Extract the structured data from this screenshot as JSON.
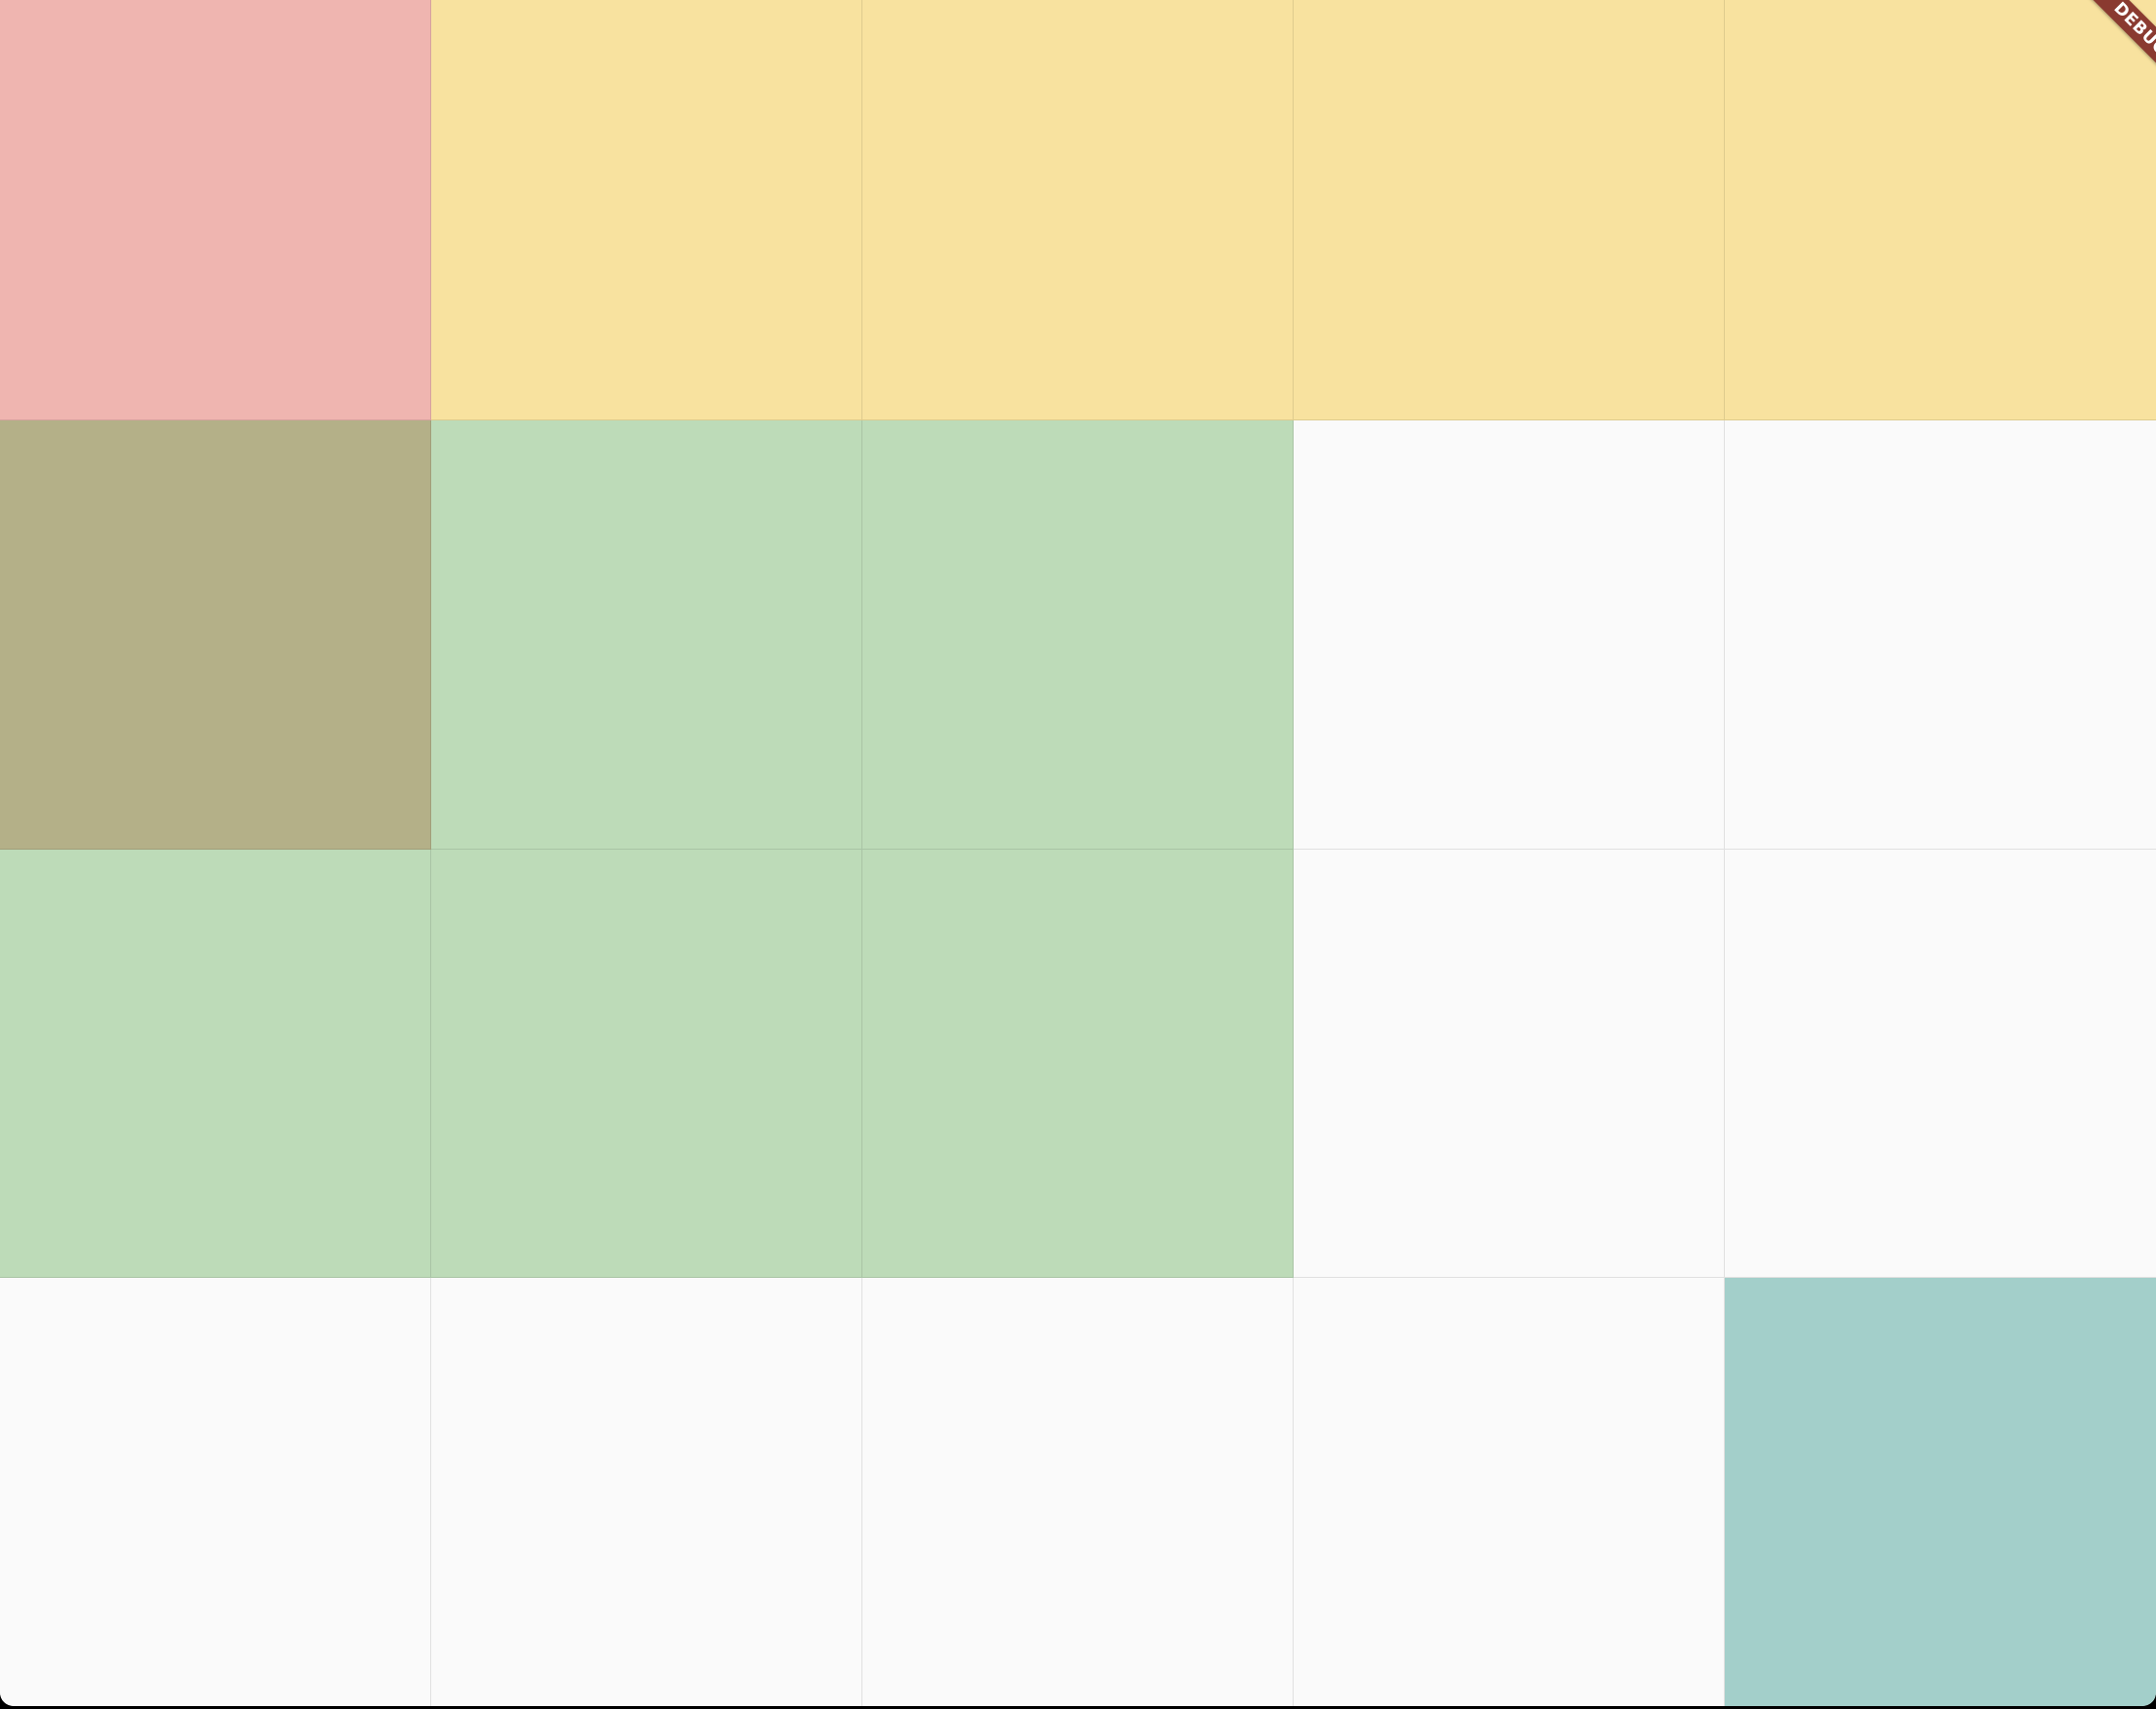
{
  "debug_banner": {
    "label": "DEBUG"
  },
  "colors": {
    "page_background": "#fafafa",
    "outer_background": "#000000",
    "banner": "#8a3a30"
  },
  "grid": {
    "columns": 5,
    "rows": 4,
    "cells": [
      [
        "#efb5b0",
        "#f8e29f",
        "#f8e29f",
        "#f8e29f",
        "#f8e29f"
      ],
      [
        "#b4b088",
        "#bddbb8",
        "#bddbb8",
        "#fafafa",
        "#fafafa"
      ],
      [
        "#bddbb8",
        "#bddbb8",
        "#bddbb8",
        "#fafafa",
        "#fafafa"
      ],
      [
        "#fafafa",
        "#fafafa",
        "#fafafa",
        "#fafafa",
        "#a3cfca"
      ]
    ]
  }
}
